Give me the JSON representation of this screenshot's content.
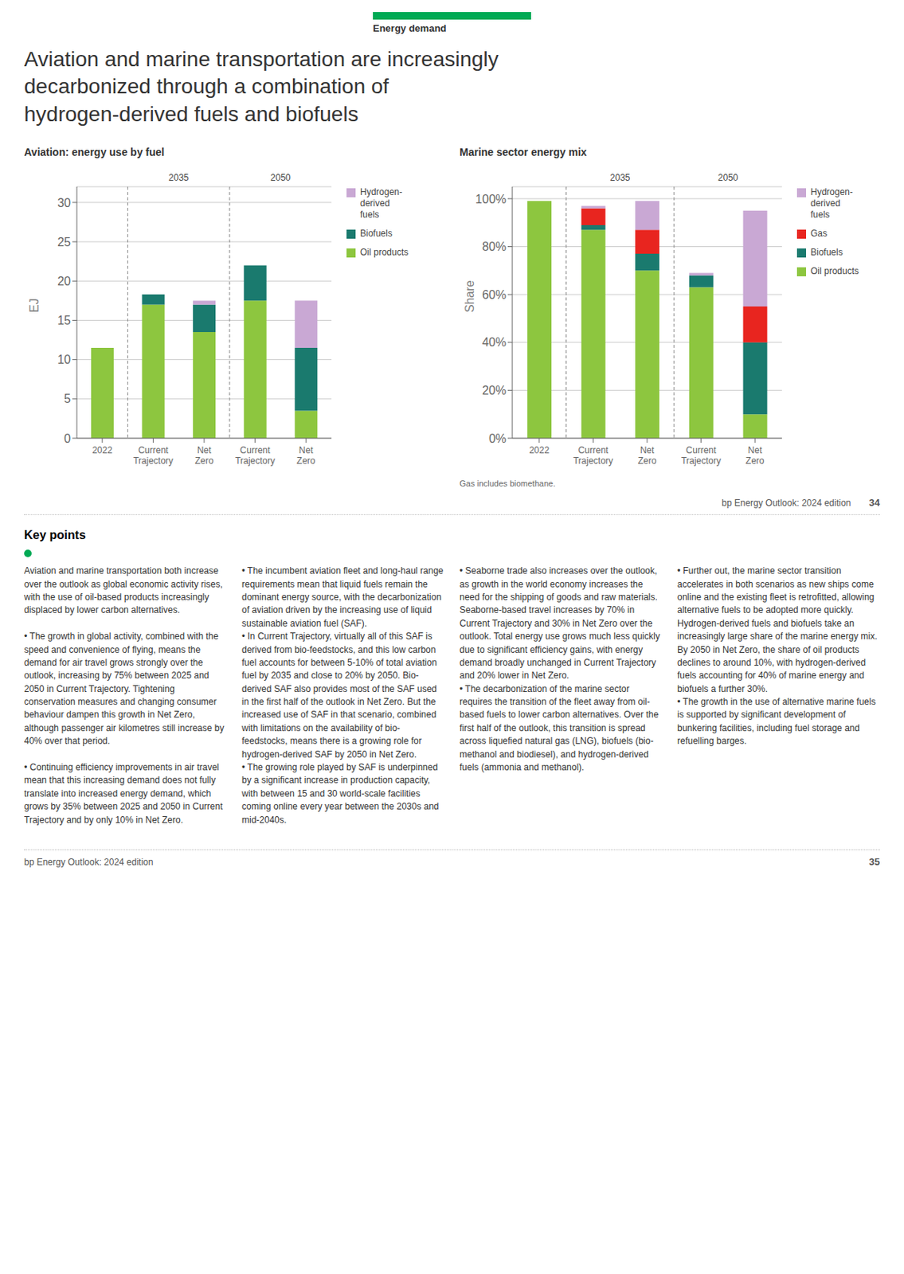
{
  "title": "Aviation and marine transportation are increasingly\ndecarbonized through a combination of\nhydrogen-derived fuels and biofuels",
  "annotations": [
    "Energy demand",
    "Key points",
    "Aviation and marine transportation both increase over the outlook as global economic activity rises, with the use of oil-based products increasingly displaced by lower carbon alternatives.\n\n• The growth in global activity, combined with the speed and convenience of flying, means the demand for air travel grows strongly over the outlook, increasing by 75% between 2025 and 2050 in Current Trajectory. Tightening conservation measures and changing consumer behaviour dampen this growth in Net Zero, although passenger air kilometres still increase by 40% over that period.\n\n• Continuing efficiency improvements in air travel mean that this increasing demand does not fully translate into increased energy demand, which grows by 35% between 2025 and 2050 in Current Trajectory and by only 10% in Net Zero.",
    "• The incumbent aviation fleet and long-haul range requirements mean that liquid fuels remain the dominant energy source, with the decarbonization of aviation driven by the increasing use of liquid sustainable aviation fuel (SAF).\n• In Current Trajectory, virtually all of this SAF is derived from bio-feedstocks, and this low carbon fuel accounts for between 5-10% of total aviation fuel by 2035 and close to 20% by 2050. Bio-derived SAF also provides most of the SAF used in the first half of the outlook in Net Zero. But the increased use of SAF in that scenario, combined with limitations on the availability of bio-feedstocks, means there is a growing role for hydrogen-derived SAF by 2050 in Net Zero.\n• The growing role played by SAF is underpinned by a significant increase in production capacity, with between 15 and 30 world-scale facilities coming online every year between the 2030s and mid-2040s.",
    "• Seaborne trade also increases over the outlook, as growth in the world economy increases the need for the shipping of goods and raw materials. Seaborne-based travel increases by 70% in Current Trajectory and 30% in Net Zero over the outlook. Total energy use grows much less quickly due to significant efficiency gains, with energy demand broadly unchanged in Current Trajectory and 20% lower in Net Zero.\n• The decarbonization of the marine sector requires the transition of the fleet away from oil-based fuels to lower carbon alternatives. Over the first half of the outlook, this transition is spread across liquefied natural gas (LNG), biofuels (bio-methanol and biodiesel), and hydrogen-derived fuels (ammonia and methanol).",
    "• Further out, the marine sector transition accelerates in both scenarios as new ships come online and the existing fleet is retrofitted, allowing alternative fuels to be adopted more quickly. Hydrogen-derived fuels and biofuels take an increasingly large share of the marine energy mix. By 2050 in Net Zero, the share of oil products declines to around 10%, with hydrogen-derived fuels accounting for 40% of marine energy and biofuels a further 30%.\n• The growth in the use of alternative marine fuels is supported by significant development of bunkering facilities, including fuel storage and refuelling barges.",
    "34",
    "bp Energy Outlook: 2024 edition",
    "bp Energy Outlook: 2024 edition",
    "35"
  ],
  "chart_data": [
    {
      "type": "bar",
      "stacked": true,
      "title": "Aviation: energy use by fuel",
      "ylabel": "EJ",
      "categories": [
        "2022",
        "Current\nTrajectory",
        "Net\nZero",
        "Current\nTrajectory",
        "Net\nZero"
      ],
      "series": [
        {
          "name": "Oil products",
          "color": "#8dc63f",
          "values": [
            11.5,
            17.0,
            13.5,
            17.5,
            3.5
          ]
        },
        {
          "name": "Biofuels",
          "color": "#1a7a6e",
          "values": [
            0.0,
            1.3,
            3.5,
            4.5,
            8.0
          ]
        },
        {
          "name": "Hydrogen-\nderived\nfuels",
          "color": "#c9a8d4",
          "values": [
            0.0,
            0.0,
            0.5,
            0.0,
            6.0
          ]
        }
      ],
      "ylim": [
        0,
        32
      ],
      "yticks": [
        0,
        5,
        10,
        15,
        20,
        25,
        30
      ],
      "grid": true,
      "legend": "upper right",
      "annotations": [
        "2035",
        "2050"
      ]
    },
    {
      "type": "bar",
      "stacked": true,
      "title": "Marine sector energy mix",
      "ylabel": "Share",
      "categories": [
        "2022",
        "Current\nTrajectory",
        "Net\nZero",
        "Current\nTrajectory",
        "Net\nZero"
      ],
      "series": [
        {
          "name": "Oil products",
          "color": "#8dc63f",
          "values": [
            0.99,
            0.87,
            0.7,
            0.63,
            0.1
          ]
        },
        {
          "name": "Biofuels",
          "color": "#1a7a6e",
          "values": [
            0.0,
            0.02,
            0.07,
            0.05,
            0.3
          ]
        },
        {
          "name": "Gas",
          "color": "#e8251f",
          "values": [
            0.0,
            0.07,
            0.1,
            0.0,
            0.15
          ]
        },
        {
          "name": "Hydrogen-\nderived\nfuels",
          "color": "#c9a8d4",
          "values": [
            0.0,
            0.01,
            0.12,
            0.01,
            0.4
          ]
        }
      ],
      "ylim": [
        0,
        1.05
      ],
      "yticks": [
        {
          "value": 0,
          "label": "0%"
        },
        {
          "value": 0.2,
          "label": "20%"
        },
        {
          "value": 0.4,
          "label": "40%"
        },
        {
          "value": 0.6,
          "label": "60%"
        },
        {
          "value": 0.8,
          "label": "80%"
        },
        {
          "value": 1.0,
          "label": "100%"
        }
      ],
      "grid": true,
      "legend": "upper right",
      "annotations": [
        "2035",
        "2050",
        "Gas includes biomethane."
      ]
    }
  ]
}
